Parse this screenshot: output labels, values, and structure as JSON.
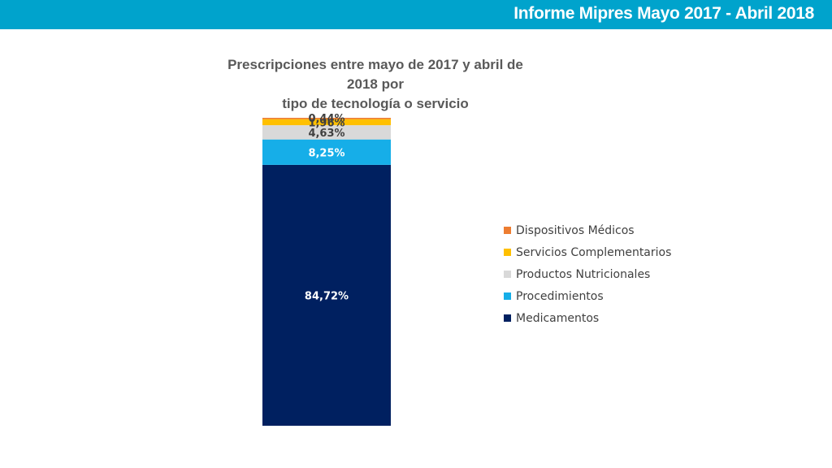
{
  "header": {
    "title": "Informe Mipres Mayo 2017 - Abril 2018"
  },
  "colors": {
    "header_bar": "#00a3cc"
  },
  "chart_data": {
    "type": "bar",
    "stacked": true,
    "title_lines": [
      "Prescripciones entre mayo de 2017 y abril de 2018 por",
      "tipo de tecnología o servicio"
    ],
    "categories": [
      ""
    ],
    "ylim": [
      0,
      100
    ],
    "grid": false,
    "legend_position": "right",
    "series": [
      {
        "name": "Medicamentos",
        "values": [
          84.72
        ],
        "label": "84,72%",
        "color": "#002060",
        "label_color": "#ffffff"
      },
      {
        "name": "Procedimientos",
        "values": [
          8.25
        ],
        "label": "8,25%",
        "color": "#16aee8",
        "label_color": "#ffffff"
      },
      {
        "name": "Productos Nutricionales",
        "values": [
          4.63
        ],
        "label": "4,63%",
        "color": "#d9d9d9",
        "label_color": "#404040"
      },
      {
        "name": "Servicios Complementarios",
        "values": [
          1.96
        ],
        "label": "1,96%",
        "color": "#ffc000",
        "label_color": "#404040"
      },
      {
        "name": "Dispositivos Médicos",
        "values": [
          0.44
        ],
        "label": "0,44%",
        "color": "#ed7d31",
        "label_color": "#404040"
      }
    ],
    "legend_order": [
      "Dispositivos Médicos",
      "Servicios Complementarios",
      "Productos Nutricionales",
      "Procedimientos",
      "Medicamentos"
    ]
  }
}
